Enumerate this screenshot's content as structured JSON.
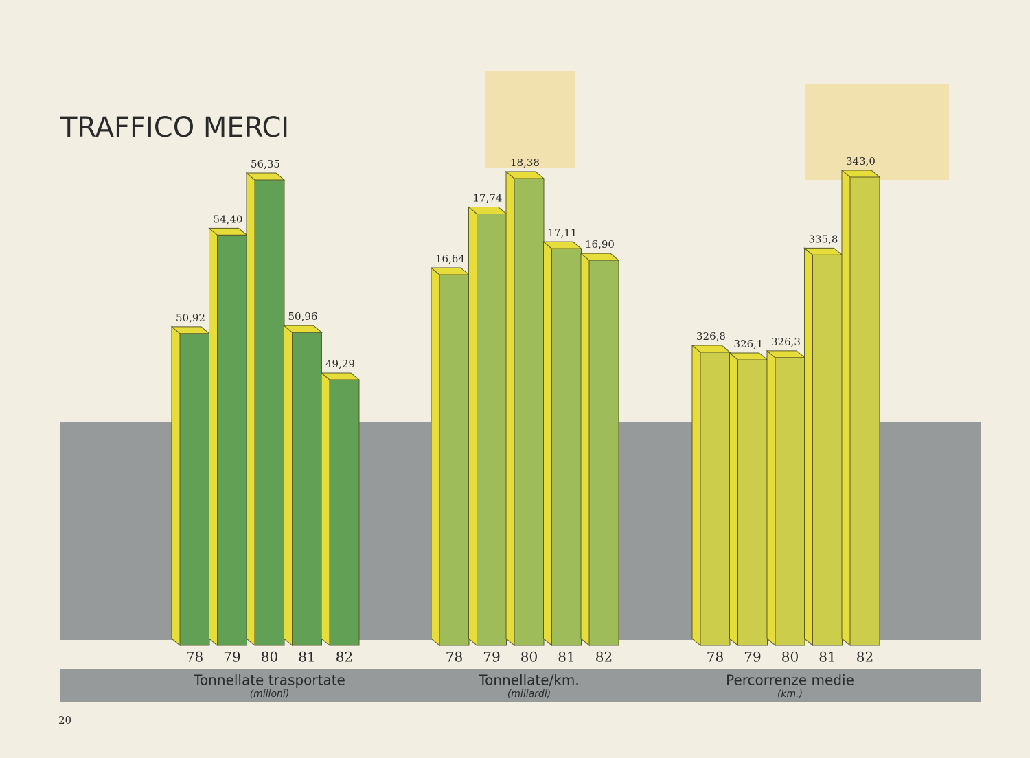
{
  "title": "TRAFFICO MERCI",
  "page_number": "20",
  "chart_data": [
    {
      "type": "bar",
      "title": "Tonnellate trasportate",
      "subtitle": "(milioni)",
      "categories": [
        "78",
        "79",
        "80",
        "81",
        "82"
      ],
      "values": [
        50.92,
        54.4,
        56.35,
        50.96,
        49.29
      ],
      "value_labels": [
        "50,92",
        "54,40",
        "56,35",
        "50,96",
        "49,29"
      ],
      "color": "#62a056"
    },
    {
      "type": "bar",
      "title": "Tonnellate/km.",
      "subtitle": "(miliardi)",
      "categories": [
        "78",
        "79",
        "80",
        "81",
        "82"
      ],
      "values": [
        16.64,
        17.74,
        18.38,
        17.11,
        16.9
      ],
      "value_labels": [
        "16,64",
        "17,74",
        "18,38",
        "17,11",
        "16,90"
      ],
      "color": "#9fbc5b"
    },
    {
      "type": "bar",
      "title": "Percorrenze medie",
      "subtitle": "(km.)",
      "categories": [
        "78",
        "79",
        "80",
        "81",
        "82"
      ],
      "values": [
        326.8,
        326.1,
        326.3,
        335.8,
        343.0
      ],
      "value_labels": [
        "326,8",
        "326,1",
        "326,3",
        "335,8",
        "343,0"
      ],
      "color": "#ccce4b"
    }
  ]
}
